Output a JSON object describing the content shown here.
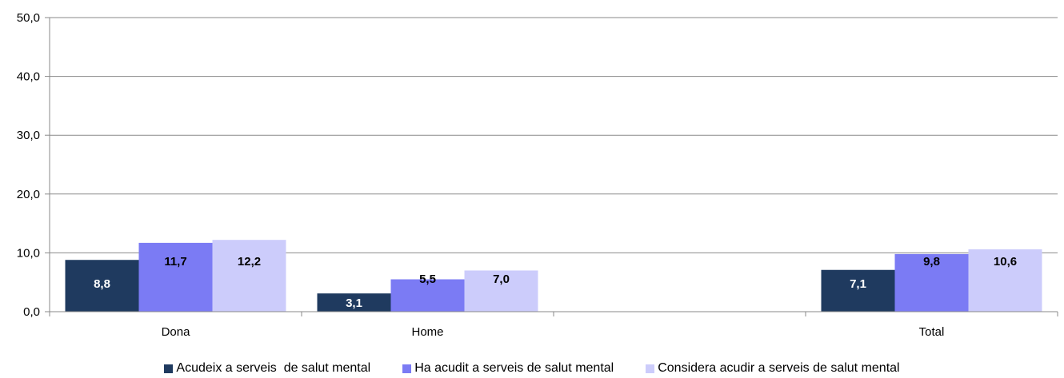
{
  "chart_data": {
    "type": "bar",
    "title": "",
    "xlabel": "",
    "ylabel": "",
    "categories": [
      "Dona",
      "Home",
      "",
      "Total"
    ],
    "ylim": [
      0,
      50
    ],
    "yticks": [
      "0,0",
      "10,0",
      "20,0",
      "30,0",
      "40,0",
      "50,0"
    ],
    "grid": true,
    "legend_position": "bottom",
    "series": [
      {
        "name": "Acudeix a serveis  de salut mental",
        "color": "#1f3a5f",
        "label_color": "#ffffff",
        "values": [
          8.8,
          3.1,
          null,
          7.1
        ],
        "labels": [
          "8,8",
          "3,1",
          "",
          "7,1"
        ]
      },
      {
        "name": "Ha acudit a serveis de salut mental",
        "color": "#7b7bf4",
        "label_color": "#000000",
        "values": [
          11.7,
          5.5,
          null,
          9.8
        ],
        "labels": [
          "11,7",
          "5,5",
          "",
          "9,8"
        ]
      },
      {
        "name": "Considera acudir a serveis de salut mental",
        "color": "#ccccfb",
        "label_color": "#000000",
        "values": [
          12.2,
          7.0,
          null,
          10.6
        ],
        "labels": [
          "12,2",
          "7,0",
          "",
          "10,6"
        ]
      }
    ]
  }
}
